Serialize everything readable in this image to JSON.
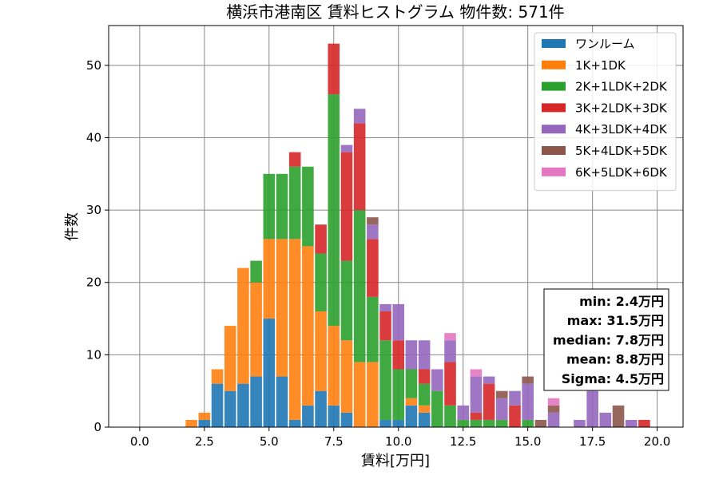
{
  "chart_data": {
    "type": "bar",
    "stacked": true,
    "title": "横浜市港南区 賃料ヒストグラム 物件数: 571件",
    "xlabel": "賃料[万円]",
    "ylabel": "件数",
    "xlim": [
      -1.2,
      21.0
    ],
    "ylim": [
      0,
      55.5
    ],
    "xticks": [
      0.0,
      2.5,
      5.0,
      7.5,
      10.0,
      12.5,
      15.0,
      17.5,
      20.0
    ],
    "xtick_labels": [
      "0.0",
      "2.5",
      "5.0",
      "7.5",
      "10.0",
      "12.5",
      "15.0",
      "17.5",
      "20.0"
    ],
    "yticks": [
      0,
      10,
      20,
      30,
      40,
      50
    ],
    "ytick_labels": [
      "0",
      "10",
      "20",
      "30",
      "40",
      "50"
    ],
    "grid": true,
    "legend_position": "top-right",
    "bin_width": 0.5,
    "bar_width": 0.45,
    "x": [
      2.0,
      2.5,
      3.0,
      3.5,
      4.0,
      4.5,
      5.0,
      5.5,
      6.0,
      6.5,
      7.0,
      7.5,
      8.0,
      8.5,
      9.0,
      9.5,
      10.0,
      10.5,
      11.0,
      11.5,
      12.0,
      12.5,
      13.0,
      13.5,
      14.0,
      14.5,
      15.0,
      15.5,
      16.0,
      16.5,
      17.0,
      17.5,
      18.0,
      18.5,
      19.0,
      19.5
    ],
    "series": [
      {
        "name": "ワンルーム",
        "color": "#1f77b4",
        "values": [
          0,
          1,
          6,
          5,
          6,
          7,
          15,
          7,
          1,
          3,
          5,
          3,
          2,
          0,
          0,
          1,
          1,
          3,
          2,
          0,
          0,
          0,
          0,
          0,
          0,
          0,
          0,
          0,
          0,
          0,
          0,
          0,
          0,
          0,
          0,
          0
        ]
      },
      {
        "name": "1K+1DK",
        "color": "#ff7f0e",
        "values": [
          1,
          1,
          2,
          9,
          16,
          13,
          11,
          19,
          25,
          22,
          11,
          11,
          10,
          9,
          9,
          0,
          0,
          1,
          1,
          0,
          0,
          0,
          0,
          0,
          0,
          0,
          0,
          0,
          0,
          0,
          0,
          0,
          0,
          0,
          0,
          0
        ]
      },
      {
        "name": "2K+1LDK+2DK",
        "color": "#2ca02c",
        "values": [
          0,
          0,
          0,
          0,
          0,
          3,
          9,
          9,
          10,
          11,
          8,
          32,
          11,
          21,
          9,
          11,
          7,
          4,
          3,
          5,
          3,
          1,
          1,
          1,
          1,
          0,
          1,
          0,
          0,
          0,
          0,
          0,
          0,
          0,
          0,
          0
        ]
      },
      {
        "name": "3K+2LDK+3DK",
        "color": "#d62728",
        "values": [
          0,
          0,
          0,
          0,
          0,
          0,
          0,
          0,
          2,
          0,
          4,
          7,
          15,
          12,
          8,
          4,
          4,
          0,
          2,
          0,
          6,
          0,
          1,
          5,
          0,
          3,
          0,
          0,
          0,
          0,
          0,
          0,
          0,
          0,
          0,
          1
        ]
      },
      {
        "name": "4K+3LDK+4DK",
        "color": "#9467bd",
        "values": [
          0,
          0,
          0,
          0,
          0,
          0,
          0,
          0,
          0,
          0,
          0,
          0,
          1,
          2,
          2,
          1,
          5,
          4,
          4,
          3,
          3,
          2,
          5,
          1,
          3,
          2,
          5,
          0,
          2,
          0,
          1,
          5,
          2,
          0,
          1,
          0
        ]
      },
      {
        "name": "5K+4LDK+5DK",
        "color": "#8c564b",
        "values": [
          0,
          0,
          0,
          0,
          0,
          0,
          0,
          0,
          0,
          0,
          0,
          0,
          0,
          0,
          1,
          0,
          0,
          0,
          0,
          0,
          0,
          0,
          0,
          0,
          1,
          0,
          1,
          1,
          1,
          0,
          0,
          0,
          0,
          3,
          0,
          0
        ]
      },
      {
        "name": "6K+5LDK+6DK",
        "color": "#e377c2",
        "values": [
          0,
          0,
          0,
          0,
          0,
          0,
          0,
          0,
          0,
          0,
          0,
          0,
          0,
          0,
          0,
          0,
          0,
          0,
          0,
          0,
          1,
          0,
          1,
          0,
          0,
          0,
          0,
          0,
          1,
          0,
          0,
          0,
          0,
          0,
          0,
          0
        ]
      }
    ],
    "annotations": [
      "min: 2.4万円",
      "max: 31.5万円",
      "median: 7.8万円",
      "mean: 8.8万円",
      "Sigma: 4.5万円"
    ]
  }
}
